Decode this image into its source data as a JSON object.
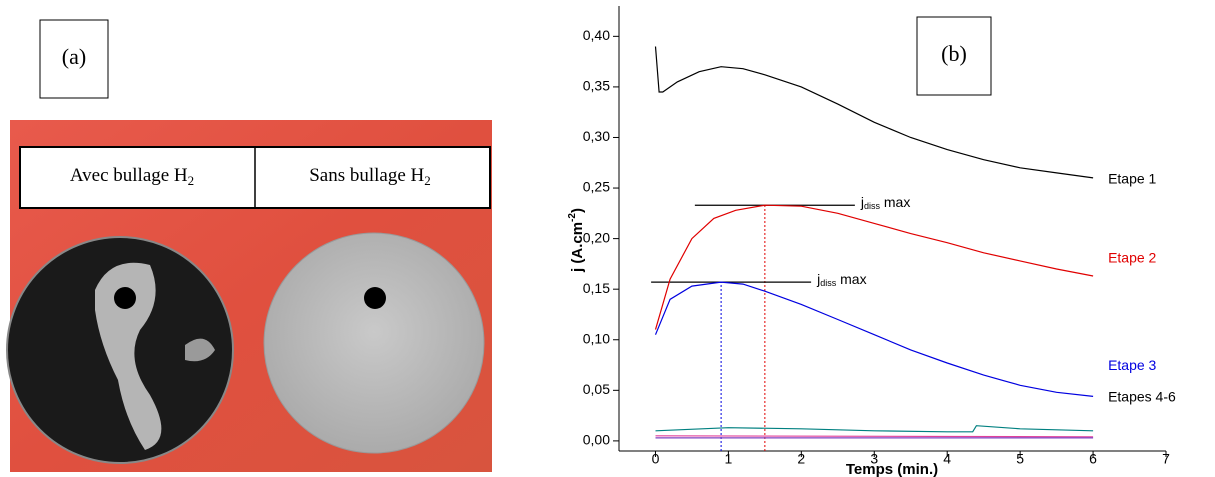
{
  "panel_a": {
    "label": "(a)",
    "table": {
      "cells": [
        {
          "text": "Avec bullage H",
          "sub": "2"
        },
        {
          "text": "Sans bullage H",
          "sub": "2"
        }
      ]
    }
  },
  "chart_data": {
    "type": "line",
    "label": "(b)",
    "xlabel": "Temps (min.)",
    "ylabel": {
      "text": "j  (A.cm",
      "sup": "-2",
      "end": ")"
    },
    "xlim": [
      -0.5,
      7
    ],
    "xticks": [
      0,
      1,
      2,
      3,
      4,
      5,
      6,
      7
    ],
    "ylim": [
      -0.01,
      0.43
    ],
    "yticks": [
      {
        "value": 0,
        "label": "0,00"
      },
      {
        "value": 0.05,
        "label": "0,05"
      },
      {
        "value": 0.1,
        "label": "0,10"
      },
      {
        "value": 0.15,
        "label": "0,15"
      },
      {
        "value": 0.2,
        "label": "0,20"
      },
      {
        "value": 0.25,
        "label": "0,25"
      },
      {
        "value": 0.3,
        "label": "0,30"
      },
      {
        "value": 0.35,
        "label": "0,35"
      },
      {
        "value": 0.4,
        "label": "0,40"
      }
    ],
    "series": [
      {
        "name": "Etape 1",
        "color": "#000000",
        "label_color": "#000000",
        "x": [
          0,
          0.05,
          0.1,
          0.3,
          0.6,
          0.9,
          1.2,
          1.5,
          2,
          2.5,
          3,
          3.5,
          4,
          4.5,
          5,
          5.5,
          6
        ],
        "values": [
          0.39,
          0.345,
          0.345,
          0.355,
          0.365,
          0.37,
          0.368,
          0.362,
          0.35,
          0.333,
          0.315,
          0.3,
          0.288,
          0.278,
          0.27,
          0.265,
          0.26
        ]
      },
      {
        "name": "Etape 2",
        "color": "#e00000",
        "label_color": "#e00000",
        "x": [
          0,
          0.2,
          0.5,
          0.8,
          1.1,
          1.5,
          2,
          2.5,
          3,
          3.5,
          4,
          4.5,
          5,
          5.5,
          6
        ],
        "values": [
          0.11,
          0.16,
          0.2,
          0.22,
          0.228,
          0.233,
          0.232,
          0.225,
          0.215,
          0.205,
          0.196,
          0.186,
          0.178,
          0.17,
          0.163
        ]
      },
      {
        "name": "Etape 3",
        "color": "#0000e0",
        "label_color": "#0000e0",
        "x": [
          0,
          0.2,
          0.5,
          0.9,
          1.2,
          1.5,
          2,
          2.5,
          3,
          3.5,
          4,
          4.5,
          5,
          5.5,
          6
        ],
        "values": [
          0.105,
          0.14,
          0.153,
          0.157,
          0.155,
          0.148,
          0.135,
          0.12,
          0.105,
          0.09,
          0.077,
          0.065,
          0.055,
          0.048,
          0.044
        ]
      },
      {
        "name": "Etapes 4-6",
        "color": "#008080",
        "label_color": "#000000",
        "x": [
          0,
          1,
          2,
          3,
          4,
          4.35,
          4.4,
          5,
          6
        ],
        "values": [
          0.01,
          0.013,
          0.012,
          0.01,
          0.009,
          0.009,
          0.015,
          0.012,
          0.01
        ]
      },
      {
        "color": "#e0409a",
        "x": [
          0,
          6
        ],
        "values": [
          0.005,
          0.004
        ]
      },
      {
        "color": "#8040c0",
        "x": [
          0,
          6
        ],
        "values": [
          0.003,
          0.003
        ]
      }
    ],
    "jmax_lines": [
      {
        "x": 1.5,
        "y": 0.233,
        "color": "#e00000",
        "label": {
          "text": "j",
          "sub": "diss",
          "end": " max"
        }
      },
      {
        "x": 0.9,
        "y": 0.157,
        "color": "#0000e0",
        "label": {
          "text": "j",
          "sub": "diss",
          "end": " max"
        }
      }
    ]
  }
}
